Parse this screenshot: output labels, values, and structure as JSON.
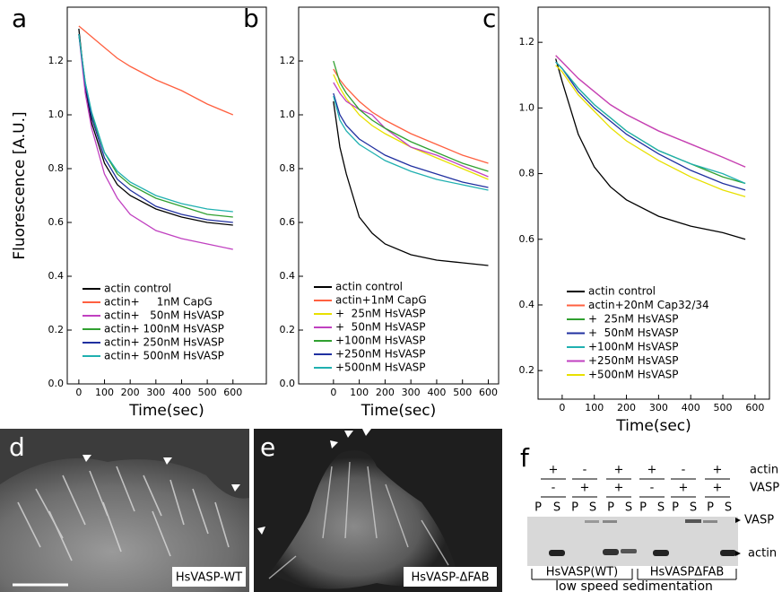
{
  "chart_data": [
    {
      "type": "line",
      "panel": "a",
      "y_label": "Fluorescence [A.U.]",
      "x_label": "Time(sec)",
      "x": [
        0,
        25,
        50,
        100,
        150,
        200,
        300,
        400,
        500,
        600
      ],
      "xlim": [
        -45,
        730
      ],
      "ylim": [
        0,
        1.4
      ],
      "xticks": [
        0,
        100,
        200,
        300,
        400,
        500,
        600
      ],
      "yticks": [
        {
          "value": 0,
          "label": "0.0"
        },
        0.2,
        0.4,
        0.6,
        0.8,
        {
          "value": 1,
          "label": "1.0"
        },
        1.2
      ],
      "series": [
        {
          "name": "actin control",
          "color": "#000000",
          "values": [
            1.32,
            1.1,
            0.97,
            0.82,
            0.74,
            0.7,
            0.65,
            0.62,
            0.6,
            0.59
          ]
        },
        {
          "name": "actin+     1nM CapG",
          "color": "#ff6040",
          "values": [
            1.33,
            1.31,
            1.29,
            1.25,
            1.21,
            1.18,
            1.13,
            1.09,
            1.04,
            1.0
          ]
        },
        {
          "name": "actin+   50nM HsVASP",
          "color": "#c040c0",
          "values": [
            1.3,
            1.08,
            0.95,
            0.78,
            0.69,
            0.63,
            0.57,
            0.54,
            0.52,
            0.5
          ]
        },
        {
          "name": "actin+ 100nM HsVASP",
          "color": "#30a030",
          "values": [
            1.3,
            1.12,
            1.0,
            0.86,
            0.78,
            0.74,
            0.69,
            0.66,
            0.63,
            0.62
          ]
        },
        {
          "name": "actin+ 250nM HsVASP",
          "color": "#2030a0",
          "values": [
            1.3,
            1.11,
            0.99,
            0.84,
            0.76,
            0.72,
            0.66,
            0.63,
            0.61,
            0.6
          ]
        },
        {
          "name": "actin+ 500nM HsVASP",
          "color": "#20b0b0",
          "values": [
            1.3,
            1.12,
            1.01,
            0.86,
            0.79,
            0.75,
            0.7,
            0.67,
            0.65,
            0.64
          ]
        }
      ]
    },
    {
      "type": "line",
      "panel": "b",
      "x_label": "Time(sec)",
      "x": [
        0,
        25,
        50,
        100,
        150,
        200,
        300,
        400,
        500,
        600
      ],
      "xlim": [
        -135,
        640
      ],
      "ylim": [
        0,
        1.4
      ],
      "xticks": [
        0,
        100,
        200,
        300,
        400,
        500,
        600
      ],
      "yticks": [
        {
          "value": 0,
          "label": "0.0"
        },
        0.2,
        0.4,
        0.6,
        0.8,
        {
          "value": 1,
          "label": "1.0"
        },
        1.2
      ],
      "series": [
        {
          "name": "actin control",
          "color": "#000000",
          "values": [
            1.05,
            0.88,
            0.78,
            0.62,
            0.56,
            0.52,
            0.48,
            0.46,
            0.45,
            0.44
          ]
        },
        {
          "name": "actin+1nM CapG",
          "color": "#ff6040",
          "values": [
            1.17,
            1.13,
            1.1,
            1.05,
            1.01,
            0.98,
            0.93,
            0.89,
            0.85,
            0.82
          ]
        },
        {
          "name": "+  25nM HsVASP",
          "color": "#e8e000",
          "values": [
            1.15,
            1.1,
            1.06,
            1.0,
            0.96,
            0.93,
            0.88,
            0.84,
            0.8,
            0.76
          ]
        },
        {
          "name": "+  50nM HsVASP",
          "color": "#c040c0",
          "values": [
            1.12,
            1.08,
            1.05,
            1.02,
            1.0,
            0.95,
            0.88,
            0.85,
            0.81,
            0.77
          ]
        },
        {
          "name": "+100nM HsVASP",
          "color": "#30a030",
          "values": [
            1.2,
            1.12,
            1.08,
            1.02,
            0.98,
            0.95,
            0.9,
            0.86,
            0.82,
            0.79
          ]
        },
        {
          "name": "+250nM HsVASP",
          "color": "#2030a0",
          "values": [
            1.08,
            1.0,
            0.96,
            0.91,
            0.88,
            0.85,
            0.81,
            0.78,
            0.75,
            0.73
          ]
        },
        {
          "name": "+500nM HsVASP",
          "color": "#20b0b0",
          "values": [
            1.07,
            0.98,
            0.94,
            0.89,
            0.86,
            0.83,
            0.79,
            0.76,
            0.74,
            0.72
          ]
        }
      ]
    },
    {
      "type": "line",
      "panel": "c",
      "x_label": "Time(sec)",
      "x": [
        -20,
        0,
        50,
        100,
        150,
        200,
        300,
        400,
        500,
        570
      ],
      "xlim": [
        -75,
        645
      ],
      "ylim": [
        0.113,
        1.307
      ],
      "xticks": [
        0,
        100,
        200,
        300,
        400,
        500,
        600
      ],
      "yticks": [
        0.2,
        0.4,
        0.6,
        0.8,
        {
          "value": 1,
          "label": "1.0"
        },
        1.2
      ],
      "series": [
        {
          "name": "actin control",
          "color": "#000000",
          "values": [
            1.15,
            1.08,
            0.92,
            0.82,
            0.76,
            0.72,
            0.67,
            0.64,
            0.62,
            0.6
          ]
        },
        {
          "name": "actin+20nM Cap32/34",
          "color": "#ff6040",
          "values": [
            1.16,
            1.14,
            1.09,
            1.05,
            1.01,
            0.98,
            0.93,
            0.89,
            0.85,
            0.82
          ]
        },
        {
          "name": "+  25nM HsVASP",
          "color": "#30a030",
          "values": [
            1.14,
            1.12,
            1.06,
            1.01,
            0.97,
            0.93,
            0.87,
            0.83,
            0.79,
            0.77
          ]
        },
        {
          "name": "+  50nM HsVASP",
          "color": "#2030a0",
          "values": [
            1.14,
            1.12,
            1.05,
            1.0,
            0.96,
            0.92,
            0.86,
            0.81,
            0.77,
            0.75
          ]
        },
        {
          "name": "+100nM HsVASP",
          "color": "#20b0b0",
          "values": [
            1.14,
            1.12,
            1.06,
            1.01,
            0.97,
            0.93,
            0.87,
            0.83,
            0.8,
            0.77
          ]
        },
        {
          "name": "+250nM HsVASP",
          "color": "#c040c0",
          "values": [
            1.16,
            1.14,
            1.09,
            1.05,
            1.01,
            0.98,
            0.93,
            0.89,
            0.85,
            0.82
          ]
        },
        {
          "name": "+500nM HsVASP",
          "color": "#e8e000",
          "values": [
            1.13,
            1.11,
            1.04,
            0.99,
            0.94,
            0.9,
            0.84,
            0.79,
            0.75,
            0.73
          ]
        }
      ]
    }
  ],
  "images": [
    {
      "letter": "d",
      "caption": "HsVASP-WT"
    },
    {
      "letter": "e",
      "caption": "HsVASP-ΔFAB"
    }
  ],
  "gel": {
    "letter": "f",
    "row_labels": [
      "actin",
      "VASP"
    ],
    "actin_signs": [
      "+",
      "-",
      "+",
      "+",
      "-",
      "+"
    ],
    "vasp_signs": [
      "-",
      "+",
      "+",
      "-",
      "+",
      "+"
    ],
    "lanes": [
      "P",
      "S",
      "P",
      "S",
      "P",
      "S",
      "P",
      "S",
      "P",
      "S",
      "P",
      "S"
    ],
    "band_labels": [
      "VASP",
      "actin"
    ],
    "groups": [
      "HsVASP(WT)",
      "HsVASPΔFAB"
    ],
    "footer": "low speed sedimentation"
  }
}
